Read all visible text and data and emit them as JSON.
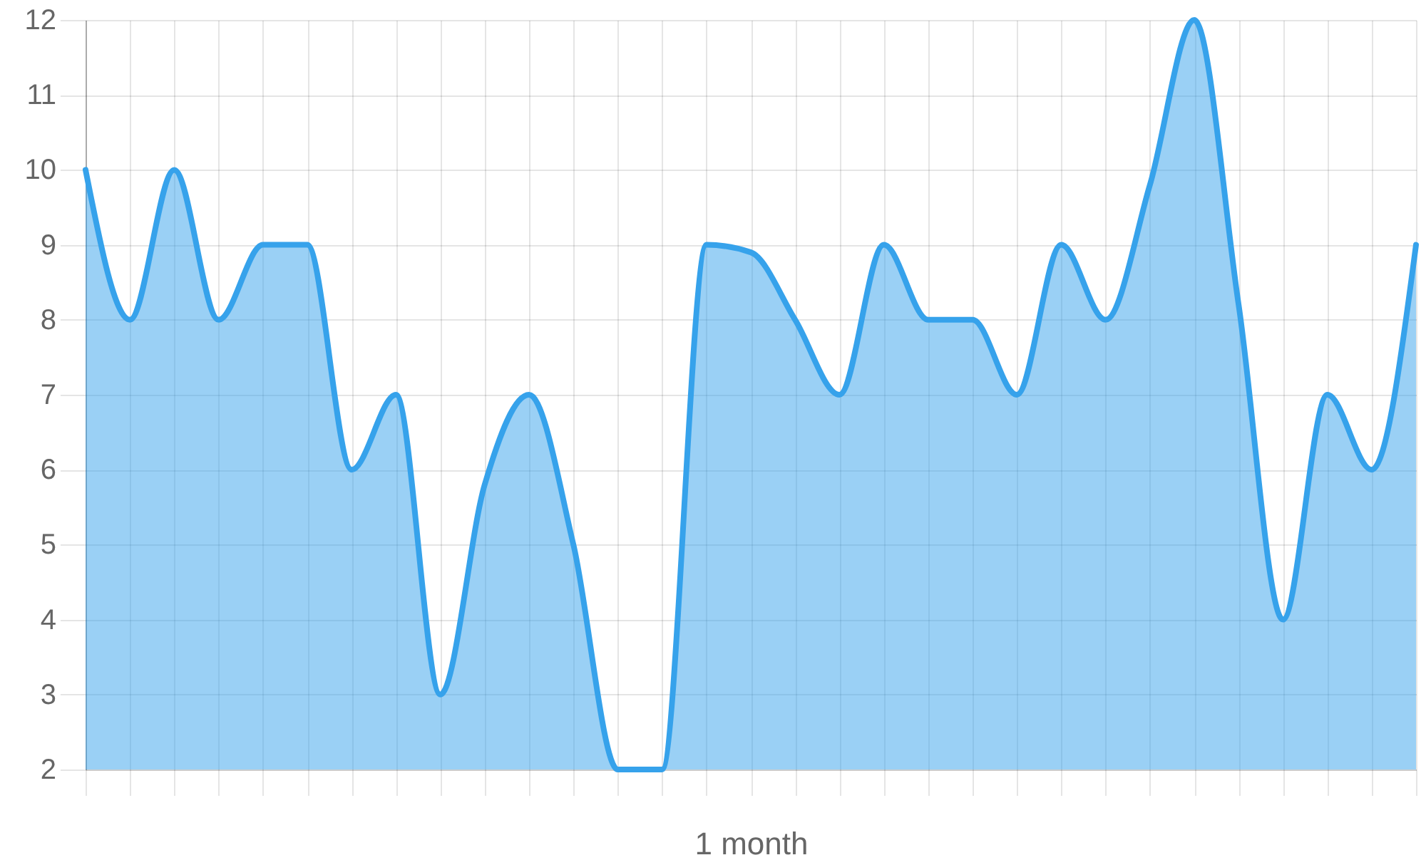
{
  "chart_data": {
    "type": "area",
    "xlabel": "1 month",
    "categories": [
      null,
      null,
      null,
      null,
      null,
      null,
      null,
      null,
      null,
      null,
      null,
      null,
      null,
      null,
      null,
      null,
      null,
      null,
      null,
      null,
      null,
      null,
      null,
      null,
      null,
      null,
      null,
      null,
      null,
      null,
      null
    ],
    "values": [
      10,
      8,
      10,
      8,
      9,
      9,
      6,
      7,
      3,
      5.8,
      7,
      5,
      2,
      2,
      9,
      8.9,
      8,
      7,
      9,
      8,
      8,
      7,
      9,
      8,
      9.8,
      12,
      8.2,
      4,
      7,
      6,
      9
    ],
    "color": "#36a2eb",
    "ylim": [
      2,
      12
    ],
    "yticks": [
      2,
      3,
      4,
      5,
      6,
      7,
      8,
      9,
      10,
      11,
      12
    ],
    "grid": true
  }
}
